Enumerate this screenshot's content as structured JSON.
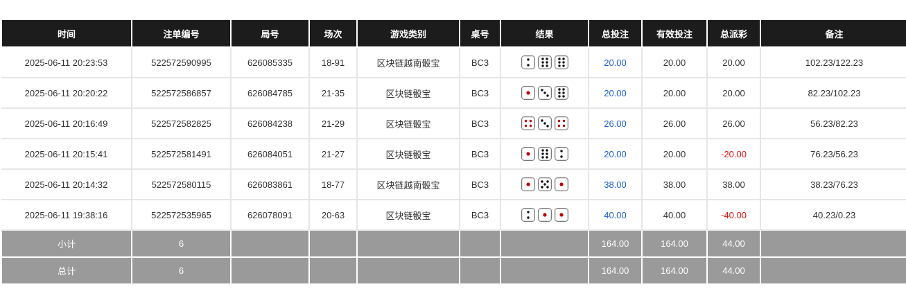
{
  "headers": [
    "时间",
    "注单编号",
    "局号",
    "场次",
    "游戏类别",
    "桌号",
    "结果",
    "总投注",
    "有效投注",
    "总派彩",
    "备注"
  ],
  "rows": [
    {
      "time": "2025-06-11 20:23:53",
      "bet_id": "522572590995",
      "round": "626085335",
      "session": "18-91",
      "game": "区块链越南骰宝",
      "table": "BC3",
      "dice": [
        2,
        6,
        6
      ],
      "total_bet": "20.00",
      "valid_bet": "20.00",
      "payout": "20.00",
      "payout_negative": false,
      "note": "102.23/122.23"
    },
    {
      "time": "2025-06-11 20:20:22",
      "bet_id": "522572586857",
      "round": "626084785",
      "session": "21-35",
      "game": "区块链骰宝",
      "table": "BC3",
      "dice": [
        1,
        3,
        6
      ],
      "total_bet": "20.00",
      "valid_bet": "20.00",
      "payout": "20.00",
      "payout_negative": false,
      "note": "82.23/102.23"
    },
    {
      "time": "2025-06-11 20:16:49",
      "bet_id": "522572582825",
      "round": "626084238",
      "session": "21-29",
      "game": "区块链骰宝",
      "table": "BC3",
      "dice": [
        4,
        3,
        4
      ],
      "total_bet": "26.00",
      "valid_bet": "26.00",
      "payout": "26.00",
      "payout_negative": false,
      "note": "56.23/82.23"
    },
    {
      "time": "2025-06-11 20:15:41",
      "bet_id": "522572581491",
      "round": "626084051",
      "session": "21-27",
      "game": "区块链骰宝",
      "table": "BC3",
      "dice": [
        1,
        6,
        2
      ],
      "total_bet": "20.00",
      "valid_bet": "20.00",
      "payout": "-20.00",
      "payout_negative": true,
      "note": "76.23/56.23"
    },
    {
      "time": "2025-06-11 20:14:32",
      "bet_id": "522572580115",
      "round": "626083861",
      "session": "18-77",
      "game": "区块链越南骰宝",
      "table": "BC3",
      "dice": [
        1,
        5,
        1
      ],
      "total_bet": "38.00",
      "valid_bet": "38.00",
      "payout": "38.00",
      "payout_negative": false,
      "note": "38.23/76.23"
    },
    {
      "time": "2025-06-11 19:38:16",
      "bet_id": "522572535965",
      "round": "626078091",
      "session": "20-63",
      "game": "区块链骰宝",
      "table": "BC3",
      "dice": [
        2,
        1,
        1
      ],
      "total_bet": "40.00",
      "valid_bet": "40.00",
      "payout": "-40.00",
      "payout_negative": true,
      "note": "40.23/0.23"
    }
  ],
  "subtotal": {
    "label": "小计",
    "count": "6",
    "total_bet": "164.00",
    "valid_bet": "164.00",
    "payout": "44.00"
  },
  "total": {
    "label": "总计",
    "count": "6",
    "total_bet": "164.00",
    "valid_bet": "164.00",
    "payout": "44.00"
  },
  "colors": {
    "header_bg": "#1c1c1c",
    "summary_bg": "#9a9a9a",
    "link_blue": "#1d5fd1",
    "negative_red": "#e01010",
    "pip_red": "#c00000"
  }
}
